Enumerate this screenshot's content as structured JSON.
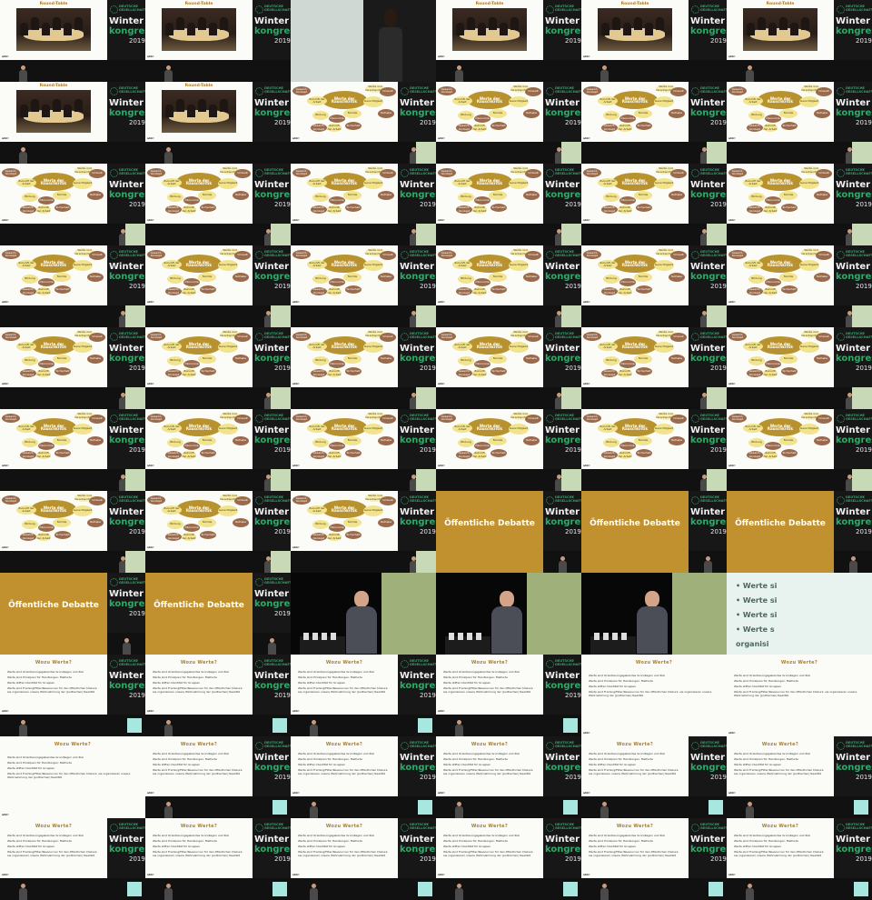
{
  "sidebar": {
    "org_line": "DEUTSCHE\nGESELLSCHAFT",
    "word1": "Winter",
    "word2": "kongress",
    "year": "2019"
  },
  "footer": {
    "brand": "ahh!",
    "page": ""
  },
  "photo_slide": {
    "title": "Round-Table"
  },
  "mindmap": {
    "center": "Werte der Rauschkritik",
    "nodes": [
      "Gesamt-Konzept",
      "Zukunft der Arbeit",
      "Werte und Verantwortung",
      "Gerechtigkeit",
      "Umwelt",
      "Bildung",
      "Ökonomie",
      "Familie",
      "Sicherheit",
      "Teilhabe"
    ]
  },
  "title_slide": {
    "text": "Öffentliche Debatte"
  },
  "text_slide": {
    "title": "Wozu Werte?",
    "bullets": [
      "Werte sind Orientierungsgebendes Grundlagen und Ziel",
      "Werte sind Prinzipien für Handlungen: Methode",
      "Werte stiften Identität für Gruppen",
      "Werte sind Framing/Filter/Ressourcen für den öffentlichen Diskurs: sie organisieren unsere Wahrnehmung der (politischen) Realität"
    ]
  },
  "partial_slide": {
    "lines": [
      "• Werte si",
      "• Werte si",
      "• Werte si",
      "• Werte s",
      "organisi"
    ]
  },
  "grid": {
    "columns": 6,
    "rows": 11,
    "frames": [
      "photo",
      "photo",
      "stage-woman",
      "photo",
      "photo",
      "photo",
      "photo",
      "photo",
      "mindmap",
      "mindmap",
      "mindmap",
      "mindmap",
      "mindmap",
      "mindmap",
      "mindmap",
      "mindmap",
      "mindmap",
      "mindmap",
      "mindmap",
      "mindmap",
      "mindmap",
      "mindmap",
      "mindmap",
      "mindmap",
      "mindmap",
      "mindmap",
      "mindmap",
      "mindmap",
      "mindmap",
      "mindmap",
      "mindmap",
      "mindmap",
      "mindmap",
      "mindmap",
      "mindmap",
      "mindmap",
      "mindmap",
      "mindmap",
      "mindmap",
      "title",
      "title",
      "title",
      "title",
      "title",
      "stage-man",
      "stage-man",
      "stage-man",
      "text-partial",
      "text",
      "text",
      "text",
      "text",
      "text-big",
      "text-big",
      "text-big",
      "text",
      "text",
      "text",
      "text",
      "text",
      "text",
      "text",
      "text",
      "text",
      "text",
      "text"
    ]
  }
}
